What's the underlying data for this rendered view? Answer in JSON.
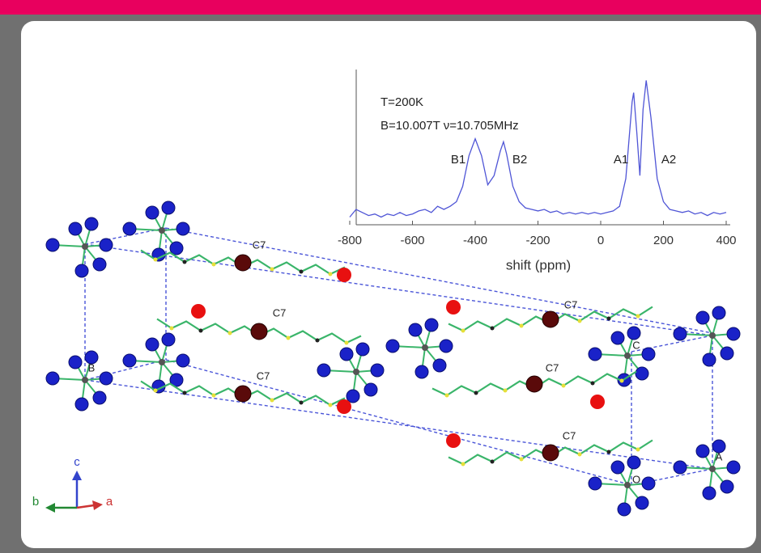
{
  "chart_data": {
    "type": "line",
    "annotations": [
      "T=200K",
      "B=10.007T  ν=10.705MHz"
    ],
    "x_label": "shift (ppm)",
    "peak_labels": [
      "B1",
      "B2",
      "A1",
      "A2"
    ],
    "color": "#4f55d6",
    "x": [
      -800,
      -780,
      -760,
      -740,
      -720,
      -700,
      -680,
      -660,
      -640,
      -620,
      -600,
      -580,
      -560,
      -540,
      -520,
      -500,
      -480,
      -460,
      -440,
      -420,
      -400,
      -380,
      -360,
      -340,
      -320,
      -310,
      -300,
      -280,
      -260,
      -240,
      -220,
      -200,
      -180,
      -160,
      -140,
      -120,
      -100,
      -80,
      -60,
      -40,
      -20,
      0,
      20,
      40,
      60,
      80,
      100,
      105,
      115,
      125,
      135,
      145,
      160,
      180,
      200,
      220,
      240,
      260,
      280,
      300,
      320,
      340,
      360,
      380,
      400
    ],
    "values": [
      0.05,
      0.1,
      0.08,
      0.06,
      0.07,
      0.05,
      0.07,
      0.06,
      0.08,
      0.06,
      0.07,
      0.09,
      0.1,
      0.08,
      0.12,
      0.1,
      0.12,
      0.15,
      0.25,
      0.45,
      0.56,
      0.45,
      0.26,
      0.32,
      0.48,
      0.54,
      0.46,
      0.25,
      0.15,
      0.11,
      0.1,
      0.09,
      0.1,
      0.08,
      0.09,
      0.07,
      0.08,
      0.07,
      0.08,
      0.07,
      0.08,
      0.07,
      0.08,
      0.09,
      0.12,
      0.3,
      0.8,
      0.86,
      0.6,
      0.32,
      0.75,
      0.94,
      0.7,
      0.3,
      0.15,
      0.1,
      0.09,
      0.08,
      0.09,
      0.07,
      0.08,
      0.06,
      0.08,
      0.07,
      0.08
    ],
    "xlim": [
      -800,
      400
    ],
    "xticks": [
      -800,
      -600,
      -400,
      -200,
      0,
      200,
      400
    ],
    "ylim": [
      0,
      1
    ]
  },
  "structure": {
    "atom_labels": [
      "C7",
      "C7",
      "C7",
      "C7",
      "C7",
      "C7"
    ],
    "cell_labels": [
      "B",
      "C",
      "A",
      "O"
    ],
    "axes_labels": [
      "c",
      "b",
      "a"
    ]
  }
}
